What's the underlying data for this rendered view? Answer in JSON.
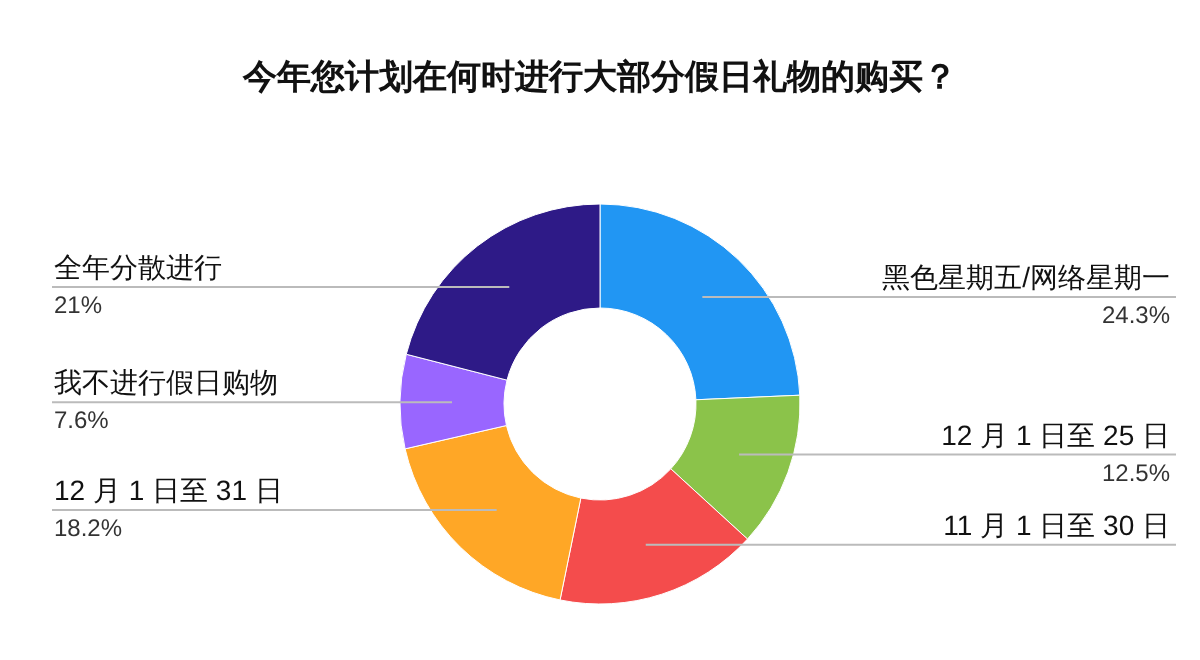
{
  "chart_data": {
    "type": "donut",
    "title": "今年您计划在何时进行大部分假日礼物的购买？",
    "categories": [
      "黑色星期五/网络星期一",
      "12 月 1 日至 25 日",
      "11 月 1 日至 30 日",
      "12 月 1 日至 31 日",
      "我不进行假日购物",
      "全年分散进行"
    ],
    "values": [
      24.3,
      12.5,
      16.4,
      18.2,
      7.6,
      21
    ],
    "value_labels": [
      "24.3%",
      "12.5%",
      null,
      "18.2%",
      "7.6%",
      "21%"
    ],
    "colors": [
      "#2196f3",
      "#8bc34a",
      "#f44c4c",
      "#ffa726",
      "#9966ff",
      "#2e1a87"
    ]
  }
}
